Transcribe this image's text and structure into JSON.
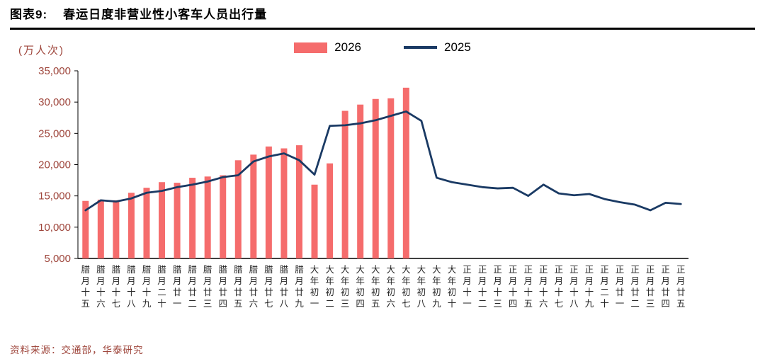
{
  "header": {
    "figure_label": "图表9:",
    "title": "春运日度非营业性小客车人员出行量"
  },
  "footer": {
    "source": "资料来源：交通部，华泰研究"
  },
  "colors": {
    "bar_2026": "#f56c6c",
    "line_2025": "#1a3a64",
    "red_label_text": "#9e453b",
    "x_tick_text": "#262626",
    "axis_line": "#000000"
  },
  "chart_data": {
    "type": "bar",
    "title": "春运日度非营业性小客车人员出行量",
    "ylabel": "(万人次)",
    "xlabel": "",
    "ylim": [
      5000,
      35000
    ],
    "y_tick_step": 5000,
    "y_tick_labels": [
      "5,000",
      "10,000",
      "15,000",
      "20,000",
      "25,000",
      "30,000",
      "35,000"
    ],
    "grid": false,
    "legend_position": "top-center",
    "categories": [
      "腊月十五",
      "腊月十六",
      "腊月十七",
      "腊月十八",
      "腊月十九",
      "腊月二十",
      "腊月廿一",
      "腊月廿二",
      "腊月廿三",
      "腊月廿四",
      "腊月廿五",
      "腊月廿六",
      "腊月廿七",
      "腊月廿八",
      "腊月廿九",
      "大年初一",
      "大年初二",
      "大年初三",
      "大年初四",
      "大年初五",
      "大年初六",
      "大年初七",
      "大年初八",
      "大年初九",
      "大年初十",
      "正月十一",
      "正月十二",
      "正月十三",
      "正月十四",
      "正月十五",
      "正月十六",
      "正月十七",
      "正月十八",
      "正月十九",
      "正月二十",
      "正月廿一",
      "正月廿二",
      "正月廿三",
      "正月廿四",
      "正月廿五"
    ],
    "series": [
      {
        "name": "2026",
        "type": "bar",
        "color": "#f56c6c",
        "values": [
          14200,
          14400,
          14300,
          15500,
          16300,
          17200,
          17100,
          17900,
          18100,
          18300,
          20700,
          21600,
          22900,
          22600,
          23100,
          16800,
          20200,
          28600,
          29600,
          30500,
          30600,
          32300,
          null,
          null,
          null,
          null,
          null,
          null,
          null,
          null,
          null,
          null,
          null,
          null,
          null,
          null,
          null,
          null,
          null,
          null
        ]
      },
      {
        "name": "2025",
        "type": "line",
        "color": "#1a3a64",
        "values": [
          12700,
          14300,
          14100,
          14600,
          15500,
          15800,
          16400,
          16800,
          17300,
          18000,
          18300,
          20500,
          21300,
          21800,
          20700,
          18400,
          26200,
          26300,
          26600,
          27100,
          27800,
          28500,
          27000,
          17900,
          17200,
          16800,
          16400,
          16200,
          16300,
          15000,
          16800,
          15400,
          15100,
          15300,
          14500,
          14000,
          13600,
          12700,
          13900,
          13700
        ]
      }
    ]
  }
}
